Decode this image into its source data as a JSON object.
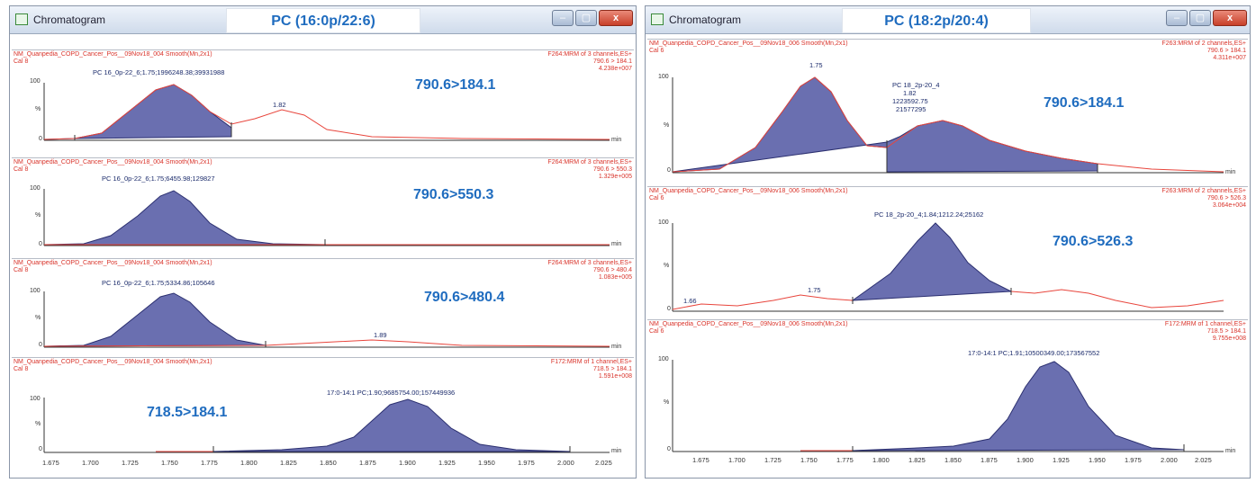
{
  "windows": [
    {
      "window_title": "Chromatogram",
      "compound": "PC (16:0p/22:6)",
      "caption_buttons": {
        "minimize": "–",
        "maximize": "▢",
        "close": "x"
      },
      "panels": [
        {
          "file": "NM_Quanpedia_COPD_Cancer_Pos__09Nov18_004 Smooth(Mn,2x1)",
          "scan": "Cal 8",
          "channel": "F264:MRM of 3 channels,ES+",
          "mrm": "790.6 > 184.1",
          "intensity": "4.238e+007",
          "peak_label": "PC 16_0p-22_6;1.75;1996248.38;39931988",
          "extra_label": "1.82",
          "transition": "790.6>184.1",
          "y_top": "100",
          "y_mid": "%",
          "y_bot": "0",
          "unit": "min"
        },
        {
          "file": "NM_Quanpedia_COPD_Cancer_Pos__09Nov18_004 Smooth(Mn,2x1)",
          "scan": "Cal 8",
          "channel": "F264:MRM of 3 channels,ES+",
          "mrm": "790.6 > 550.3",
          "intensity": "1.329e+005",
          "peak_label": "PC 16_0p-22_6;1.75;6455.98;129827",
          "extra_label": "",
          "transition": "790.6>550.3",
          "y_top": "100",
          "y_mid": "%",
          "y_bot": "0",
          "unit": "min"
        },
        {
          "file": "NM_Quanpedia_COPD_Cancer_Pos__09Nov18_004 Smooth(Mn,2x1)",
          "scan": "Cal 8",
          "channel": "F264:MRM of 3 channels,ES+",
          "mrm": "790.6 > 480.4",
          "intensity": "1.083e+005",
          "peak_label": "PC 16_0p-22_6;1.75;5334.86;105646",
          "extra_label": "1.89",
          "transition": "790.6>480.4",
          "y_top": "100",
          "y_mid": "%",
          "y_bot": "0",
          "unit": "min"
        },
        {
          "file": "NM_Quanpedia_COPD_Cancer_Pos__09Nov18_004 Smooth(Mn,2x1)",
          "scan": "Cal 8",
          "channel": "F172:MRM of 1 channel,ES+",
          "mrm": "718.5 > 184.1",
          "intensity": "1.591e+008",
          "peak_label": "17:0-14:1 PC;1.90;9685754.00;157449936",
          "extra_label": "",
          "transition": "718.5>184.1",
          "y_top": "100",
          "y_mid": "%",
          "y_bot": "0",
          "unit": "min"
        }
      ],
      "x_ticks": [
        "1.675",
        "1.700",
        "1.725",
        "1.750",
        "1.775",
        "1.800",
        "1.825",
        "1.850",
        "1.875",
        "1.900",
        "1.925",
        "1.950",
        "1.975",
        "2.000",
        "2.025"
      ]
    },
    {
      "window_title": "Chromatogram",
      "compound": "PC (18:2p/20:4)",
      "caption_buttons": {
        "minimize": "–",
        "maximize": "▢",
        "close": "x"
      },
      "panels": [
        {
          "file": "NM_Quanpedia_COPD_Cancer_Pos__09Nov18_006 Smooth(Mn,2x1)",
          "scan": "Cal 6",
          "channel": "F263:MRM of 2 channels,ES+",
          "mrm": "790.6 > 184.1",
          "intensity": "4.311e+007",
          "peak_label": "PC 18_2p-20_4",
          "peak_label_lines": [
            "1.82",
            "1223592.75",
            "21577295"
          ],
          "extra_label": "1.75",
          "transition": "790.6>184.1",
          "y_top": "100",
          "y_mid": "%",
          "y_bot": "0",
          "unit": "min"
        },
        {
          "file": "NM_Quanpedia_COPD_Cancer_Pos__09Nov18_006 Smooth(Mn,2x1)",
          "scan": "Cal 6",
          "channel": "F263:MRM of 2 channels,ES+",
          "mrm": "790.6 > 526.3",
          "intensity": "3.064e+004",
          "peak_label": "PC 18_2p-20_4;1.84;1212.24;25162",
          "extra_label": "1.75",
          "extra_label2": "1.66",
          "transition": "790.6>526.3",
          "y_top": "100",
          "y_mid": "%",
          "y_bot": "0",
          "unit": "min"
        },
        {
          "file": "NM_Quanpedia_COPD_Cancer_Pos__09Nov18_006 Smooth(Mn,2x1)",
          "scan": "Cal 6",
          "channel": "F172:MRM of 1 channel,ES+",
          "mrm": "718.5 > 184.1",
          "intensity": "9.755e+008",
          "peak_label": "17:0-14:1 PC;1.91;10500349.00;173567552",
          "extra_label": "",
          "transition": "",
          "y_top": "100",
          "y_mid": "%",
          "y_bot": "0",
          "unit": "min"
        }
      ],
      "x_ticks": [
        "1.675",
        "1.700",
        "1.725",
        "1.750",
        "1.775",
        "1.800",
        "1.825",
        "1.850",
        "1.875",
        "1.900",
        "1.925",
        "1.950",
        "1.975",
        "2.000",
        "2.025"
      ]
    }
  ],
  "colors": {
    "trace": "#e8453c",
    "fill": "#6a6fb0",
    "fill_edge": "#2c3070",
    "transition_text": "#1f6cbf"
  }
}
